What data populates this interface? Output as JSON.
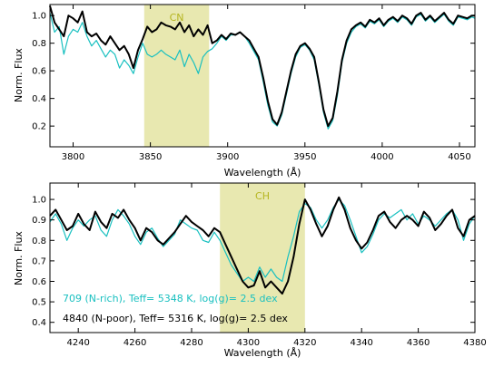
{
  "chart_data": [
    {
      "type": "line",
      "xlabel": "Wavelength (Å)",
      "ylabel": "Norm. Flux",
      "xlim": [
        3785,
        4060
      ],
      "ylim": [
        0.05,
        1.08
      ],
      "xticks": [
        3800,
        3850,
        3900,
        3950,
        4000,
        4050
      ],
      "yticks": [
        0.2,
        0.4,
        0.6,
        0.8,
        1.0
      ],
      "ytick_labels": [
        "0.2",
        "0.4",
        "0.6",
        "0.8",
        "1.0"
      ],
      "band": {
        "label": "CN",
        "from": 3846,
        "to": 3888,
        "color": "#e8e8b0",
        "label_color": "#b5b520"
      },
      "series": [
        {
          "color": "#000000",
          "stroke": 2.0,
          "x": [
            3785,
            3788,
            3791,
            3794,
            3797,
            3800,
            3803,
            3806,
            3809,
            3812,
            3815,
            3818,
            3821,
            3824,
            3827,
            3830,
            3833,
            3836,
            3839,
            3842,
            3845,
            3848,
            3851,
            3854,
            3857,
            3860,
            3863,
            3866,
            3869,
            3872,
            3875,
            3878,
            3881,
            3884,
            3887,
            3890,
            3893,
            3896,
            3899,
            3902,
            3905,
            3908,
            3911,
            3914,
            3917,
            3920,
            3923,
            3926,
            3929,
            3932,
            3935,
            3938,
            3941,
            3944,
            3947,
            3950,
            3953,
            3956,
            3959,
            3962,
            3965,
            3968,
            3971,
            3974,
            3977,
            3980,
            3983,
            3986,
            3989,
            3992,
            3995,
            3998,
            4001,
            4004,
            4007,
            4010,
            4013,
            4016,
            4019,
            4022,
            4025,
            4028,
            4031,
            4034,
            4037,
            4040,
            4043,
            4046,
            4049,
            4052,
            4055,
            4058,
            4060
          ],
          "y": [
            1.07,
            0.95,
            0.9,
            0.85,
            1.0,
            0.98,
            0.95,
            1.03,
            0.88,
            0.85,
            0.87,
            0.82,
            0.79,
            0.85,
            0.8,
            0.75,
            0.78,
            0.72,
            0.62,
            0.75,
            0.83,
            0.92,
            0.88,
            0.9,
            0.95,
            0.93,
            0.92,
            0.9,
            0.95,
            0.88,
            0.93,
            0.85,
            0.9,
            0.86,
            0.93,
            0.8,
            0.82,
            0.86,
            0.83,
            0.87,
            0.86,
            0.88,
            0.85,
            0.82,
            0.76,
            0.7,
            0.55,
            0.38,
            0.25,
            0.21,
            0.3,
            0.45,
            0.6,
            0.72,
            0.78,
            0.8,
            0.76,
            0.7,
            0.52,
            0.32,
            0.2,
            0.26,
            0.45,
            0.68,
            0.82,
            0.9,
            0.93,
            0.95,
            0.92,
            0.97,
            0.95,
            0.98,
            0.93,
            0.97,
            0.99,
            0.96,
            1.0,
            0.98,
            0.94,
            1.0,
            1.02,
            0.97,
            1.0,
            0.96,
            0.99,
            1.02,
            0.97,
            0.94,
            1.0,
            0.99,
            0.98,
            1.0,
            1.0
          ]
        },
        {
          "color": "#19c0c0",
          "stroke": 1.2,
          "x": [
            3785,
            3788,
            3791,
            3794,
            3797,
            3800,
            3803,
            3806,
            3809,
            3812,
            3815,
            3818,
            3821,
            3824,
            3827,
            3830,
            3833,
            3836,
            3839,
            3842,
            3845,
            3848,
            3851,
            3854,
            3857,
            3860,
            3863,
            3866,
            3869,
            3872,
            3875,
            3878,
            3881,
            3884,
            3887,
            3890,
            3893,
            3896,
            3899,
            3902,
            3905,
            3908,
            3911,
            3914,
            3917,
            3920,
            3923,
            3926,
            3929,
            3932,
            3935,
            3938,
            3941,
            3944,
            3947,
            3950,
            3953,
            3956,
            3959,
            3962,
            3965,
            3968,
            3971,
            3974,
            3977,
            3980,
            3983,
            3986,
            3989,
            3992,
            3995,
            3998,
            4001,
            4004,
            4007,
            4010,
            4013,
            4016,
            4019,
            4022,
            4025,
            4028,
            4031,
            4034,
            4037,
            4040,
            4043,
            4046,
            4049,
            4052,
            4055,
            4058,
            4060
          ],
          "y": [
            1.02,
            0.88,
            0.92,
            0.72,
            0.85,
            0.9,
            0.88,
            0.95,
            0.85,
            0.78,
            0.82,
            0.76,
            0.7,
            0.75,
            0.72,
            0.62,
            0.68,
            0.64,
            0.58,
            0.7,
            0.8,
            0.72,
            0.7,
            0.72,
            0.75,
            0.72,
            0.7,
            0.68,
            0.75,
            0.63,
            0.72,
            0.66,
            0.58,
            0.7,
            0.74,
            0.76,
            0.8,
            0.85,
            0.82,
            0.86,
            0.86,
            0.88,
            0.85,
            0.8,
            0.74,
            0.68,
            0.52,
            0.35,
            0.23,
            0.2,
            0.28,
            0.43,
            0.58,
            0.7,
            0.77,
            0.79,
            0.75,
            0.68,
            0.5,
            0.3,
            0.18,
            0.24,
            0.42,
            0.66,
            0.8,
            0.88,
            0.92,
            0.94,
            0.91,
            0.96,
            0.94,
            0.97,
            0.92,
            0.96,
            0.98,
            0.95,
            0.99,
            0.97,
            0.93,
            0.99,
            1.01,
            0.96,
            0.99,
            0.95,
            0.98,
            1.01,
            0.96,
            0.93,
            0.99,
            0.98,
            0.97,
            0.99,
            0.98
          ]
        }
      ]
    },
    {
      "type": "line",
      "xlabel": "Wavelength (Å)",
      "ylabel": "Norm. Flux",
      "xlim": [
        4230,
        4380
      ],
      "ylim": [
        0.35,
        1.08
      ],
      "xticks": [
        4240,
        4260,
        4280,
        4300,
        4320,
        4340,
        4360,
        4380
      ],
      "yticks": [
        0.4,
        0.5,
        0.6,
        0.7,
        0.8,
        0.9,
        1.0
      ],
      "ytick_labels": [
        "0.4",
        "0.5",
        "0.6",
        "0.7",
        "0.8",
        "0.9",
        "1.0"
      ],
      "band": {
        "label": "CH",
        "from": 4290,
        "to": 4320,
        "color": "#e8e8b0",
        "label_color": "#b5b520"
      },
      "series": [
        {
          "name": "4840 (N-poor), Teff= 5316 K, log(g)= 2.5 dex",
          "color": "#000000",
          "stroke": 2.0,
          "x": [
            4230,
            4232,
            4234,
            4236,
            4238,
            4240,
            4242,
            4244,
            4246,
            4248,
            4250,
            4252,
            4254,
            4256,
            4258,
            4260,
            4262,
            4264,
            4266,
            4268,
            4270,
            4272,
            4274,
            4276,
            4278,
            4280,
            4282,
            4284,
            4286,
            4288,
            4290,
            4292,
            4294,
            4296,
            4298,
            4300,
            4302,
            4304,
            4306,
            4308,
            4310,
            4312,
            4314,
            4316,
            4318,
            4320,
            4322,
            4324,
            4326,
            4328,
            4330,
            4332,
            4334,
            4336,
            4338,
            4340,
            4342,
            4344,
            4346,
            4348,
            4350,
            4352,
            4354,
            4356,
            4358,
            4360,
            4362,
            4364,
            4366,
            4368,
            4370,
            4372,
            4374,
            4376,
            4378,
            4380
          ],
          "y": [
            0.92,
            0.95,
            0.9,
            0.85,
            0.87,
            0.93,
            0.88,
            0.85,
            0.94,
            0.89,
            0.86,
            0.93,
            0.91,
            0.95,
            0.9,
            0.86,
            0.8,
            0.86,
            0.84,
            0.8,
            0.78,
            0.81,
            0.84,
            0.88,
            0.92,
            0.89,
            0.87,
            0.85,
            0.82,
            0.86,
            0.84,
            0.78,
            0.72,
            0.66,
            0.6,
            0.57,
            0.58,
            0.65,
            0.57,
            0.6,
            0.57,
            0.54,
            0.6,
            0.72,
            0.88,
            1.0,
            0.95,
            0.88,
            0.82,
            0.87,
            0.95,
            1.01,
            0.95,
            0.86,
            0.8,
            0.76,
            0.79,
            0.85,
            0.92,
            0.94,
            0.89,
            0.86,
            0.9,
            0.92,
            0.9,
            0.87,
            0.94,
            0.91,
            0.85,
            0.88,
            0.92,
            0.95,
            0.86,
            0.82,
            0.9,
            0.92
          ]
        },
        {
          "name": "709 (N-rich), Teff= 5348 K, log(g)= 2.5 dex",
          "color": "#19c0c0",
          "stroke": 1.2,
          "x": [
            4230,
            4232,
            4234,
            4236,
            4238,
            4240,
            4242,
            4244,
            4246,
            4248,
            4250,
            4252,
            4254,
            4256,
            4258,
            4260,
            4262,
            4264,
            4266,
            4268,
            4270,
            4272,
            4274,
            4276,
            4278,
            4280,
            4282,
            4284,
            4286,
            4288,
            4290,
            4292,
            4294,
            4296,
            4298,
            4300,
            4302,
            4304,
            4306,
            4308,
            4310,
            4312,
            4314,
            4316,
            4318,
            4320,
            4322,
            4324,
            4326,
            4328,
            4330,
            4332,
            4334,
            4336,
            4338,
            4340,
            4342,
            4344,
            4346,
            4348,
            4350,
            4352,
            4354,
            4356,
            4358,
            4360,
            4362,
            4364,
            4366,
            4368,
            4370,
            4372,
            4374,
            4376,
            4378,
            4380
          ],
          "y": [
            0.89,
            0.93,
            0.88,
            0.8,
            0.86,
            0.9,
            0.87,
            0.9,
            0.92,
            0.85,
            0.82,
            0.9,
            0.95,
            0.92,
            0.88,
            0.82,
            0.78,
            0.84,
            0.86,
            0.81,
            0.77,
            0.8,
            0.83,
            0.9,
            0.88,
            0.86,
            0.85,
            0.8,
            0.79,
            0.84,
            0.8,
            0.74,
            0.68,
            0.64,
            0.6,
            0.62,
            0.6,
            0.67,
            0.62,
            0.66,
            0.62,
            0.6,
            0.72,
            0.82,
            0.94,
            0.98,
            0.96,
            0.9,
            0.86,
            0.9,
            0.96,
            1.0,
            0.97,
            0.9,
            0.82,
            0.74,
            0.77,
            0.83,
            0.9,
            0.93,
            0.91,
            0.93,
            0.95,
            0.9,
            0.93,
            0.88,
            0.92,
            0.9,
            0.87,
            0.9,
            0.93,
            0.95,
            0.9,
            0.8,
            0.88,
            0.92
          ]
        }
      ]
    }
  ]
}
